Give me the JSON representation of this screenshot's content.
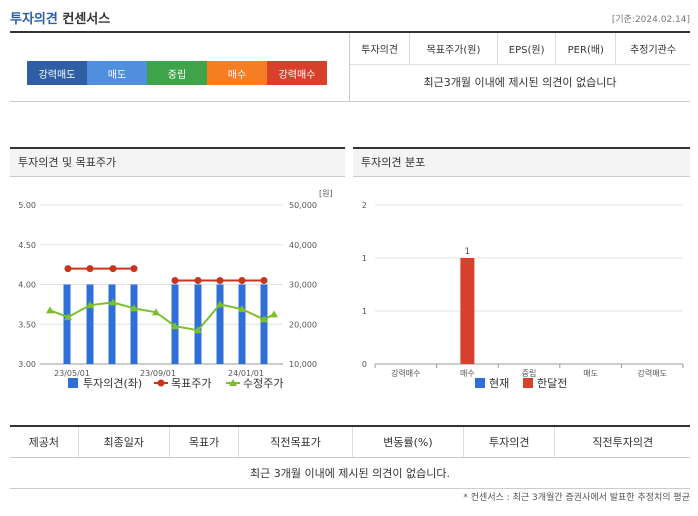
{
  "header": {
    "title_blue": "투자의견",
    "title_dark": "컨센서스",
    "date": "[기준:2024.02.14]"
  },
  "scale": [
    {
      "label": "강력매도",
      "color": "#2f5ea5"
    },
    {
      "label": "매도",
      "color": "#4f8fde"
    },
    {
      "label": "중립",
      "color": "#3fa34a"
    },
    {
      "label": "매수",
      "color": "#f57d22"
    },
    {
      "label": "강력매수",
      "color": "#d9402b"
    }
  ],
  "consensus_table": {
    "headers": [
      "투자의견",
      "목표주가(원)",
      "EPS(원)",
      "PER(배)",
      "추정기관수"
    ],
    "empty_message": "최근3개월 이내에 제시된 의견이 없습니다"
  },
  "panel_left": {
    "title": "투자의견 및 목표주가"
  },
  "panel_right": {
    "title": "투자의견 분포"
  },
  "chart_data": [
    {
      "type": "bar",
      "left_ticks": [
        "5.00",
        "4.50",
        "4.00",
        "3.50",
        "3.00"
      ],
      "right_ticks": [
        "50,000",
        "40,000",
        "30,000",
        "20,000",
        "10,000"
      ],
      "right_unit": "[원]",
      "x_ticks": [
        "23/05/01",
        "23/09/01",
        "24/01/01"
      ],
      "ylim_left": [
        3.0,
        5.0
      ],
      "ylim_right": [
        10000,
        50000
      ],
      "opinion_bars": [
        4,
        4,
        4,
        4,
        4,
        4,
        4,
        4,
        4
      ],
      "target_price": [
        34000,
        34000,
        34000,
        34000,
        31000,
        31000,
        31000,
        31000,
        31000
      ],
      "adjusted_price": [
        23500,
        21800,
        24800,
        25500,
        24000,
        23000,
        19500,
        18500,
        25000,
        23800,
        21200,
        22500
      ],
      "legend": [
        {
          "label": "투자의견(좌)",
          "color": "#2f6fd8"
        },
        {
          "label": "목표주가",
          "color": "#c9341f"
        },
        {
          "label": "수정주가",
          "color": "#7cbf2e"
        }
      ],
      "colors": {
        "bar": "#2f6fd8",
        "target": "#c9341f",
        "price": "#7cbf2e"
      }
    },
    {
      "type": "bar",
      "categories": [
        "강력매수",
        "매수",
        "중립",
        "매도",
        "강력매도"
      ],
      "y_ticks": [
        "2",
        "1",
        "1",
        "0"
      ],
      "ylim": [
        0,
        2
      ],
      "series": [
        {
          "name": "현재",
          "values": [
            0,
            0,
            0,
            0,
            0
          ],
          "color": "#2f6fd8"
        },
        {
          "name": "한달전",
          "values": [
            0,
            1,
            0,
            0,
            0
          ],
          "color": "#d9402b"
        }
      ],
      "data_label": "1"
    }
  ],
  "list_table": {
    "headers": [
      "제공처",
      "최종일자",
      "목표가",
      "직전목표가",
      "변동률(%)",
      "투자의견",
      "직전투자의견"
    ],
    "empty_message": "최근 3개월 이내에 제시된 의견이 없습니다."
  },
  "footnote": "* 컨센서스 : 최근 3개월간 증권사에서 발표한 추정치의 평균"
}
